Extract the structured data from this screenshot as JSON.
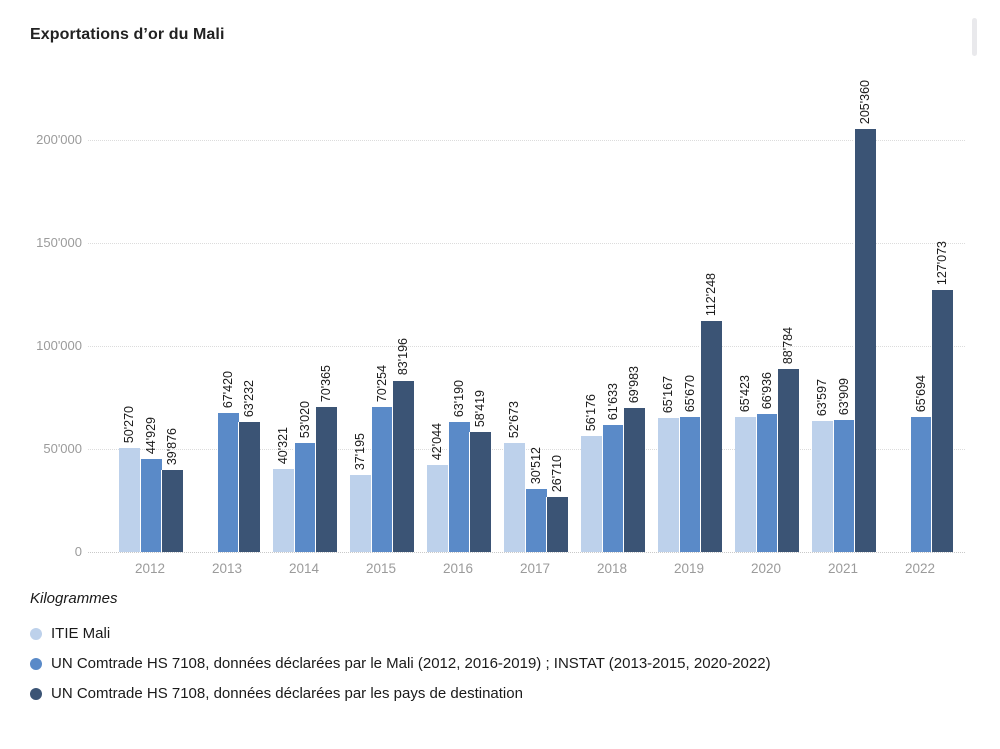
{
  "page": {
    "title": "Exportations d’or du Mali"
  },
  "chart_data": {
    "type": "bar",
    "title": "Exportations d’or du Mali",
    "unit_label": "Kilogrammes",
    "xlabel": "",
    "ylabel": "Kilogrammes",
    "ylim": [
      0,
      220000
    ],
    "grid": "horizontal-dotted",
    "legend_position": "bottom-left",
    "yticks": [
      {
        "value": 0,
        "label": "0"
      },
      {
        "value": 50000,
        "label": "50'000"
      },
      {
        "value": 100000,
        "label": "100'000"
      },
      {
        "value": 150000,
        "label": "150'000"
      },
      {
        "value": 200000,
        "label": "200'000"
      }
    ],
    "categories": [
      "2012",
      "2013",
      "2014",
      "2015",
      "2016",
      "2017",
      "2018",
      "2019",
      "2020",
      "2021",
      "2022"
    ],
    "series": [
      {
        "name": "ITIE Mali",
        "color": "#bdd1eb",
        "values": [
          50270,
          null,
          40321,
          37195,
          42044,
          52673,
          56176,
          65167,
          65423,
          63597,
          null
        ],
        "labels": [
          "50'270",
          "",
          "40'321",
          "37'195",
          "42'044",
          "52'673",
          "56'176",
          "65'167",
          "65'423",
          "63'597",
          ""
        ]
      },
      {
        "name": "UN Comtrade HS 7108, données déclarées par le Mali (2012, 2016-2019) ; INSTAT (2013-2015, 2020-2022)",
        "color": "#5a8ac8",
        "values": [
          44929,
          67420,
          53020,
          70254,
          63190,
          30512,
          61633,
          65670,
          66936,
          63909,
          65694
        ],
        "labels": [
          "44'929",
          "67'420",
          "53'020",
          "70'254",
          "63'190",
          "30'512",
          "61'633",
          "65'670",
          "66'936",
          "63'909",
          "65'694"
        ]
      },
      {
        "name": "UN Comtrade HS 7108, données déclarées par les pays de destination",
        "color": "#3b5475",
        "values": [
          39876,
          63232,
          70365,
          83196,
          58419,
          26710,
          69983,
          112248,
          88784,
          205360,
          127073
        ],
        "labels": [
          "39'876",
          "63'232",
          "70'365",
          "83'196",
          "58'419",
          "26'710",
          "69'983",
          "112'248",
          "88'784",
          "205'360",
          "127'073"
        ]
      }
    ]
  }
}
